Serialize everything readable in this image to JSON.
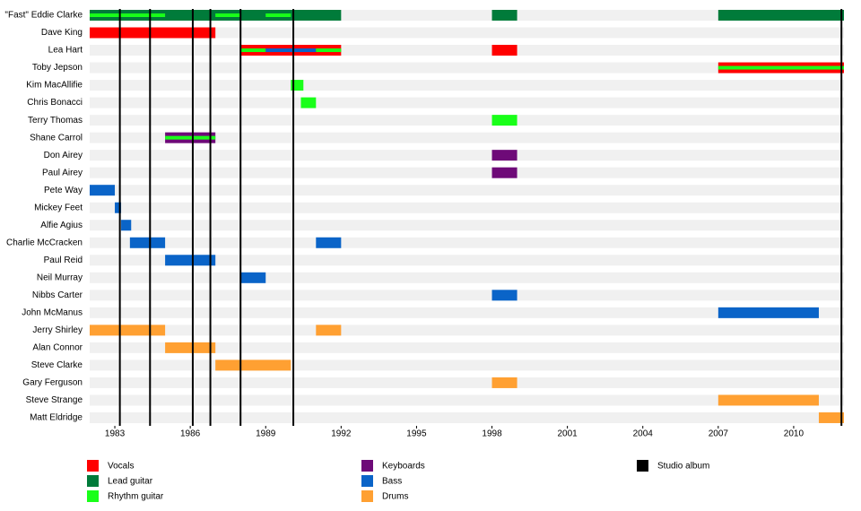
{
  "chart_data": {
    "type": "timeline",
    "xlim": [
      1982,
      2012
    ],
    "xticks": [
      1983,
      1986,
      1989,
      1992,
      1995,
      1998,
      2001,
      2004,
      2007,
      2010
    ],
    "series": [
      {
        "name": "Vocals",
        "color": "#ff0000"
      },
      {
        "name": "Lead guitar",
        "color": "#007b3a"
      },
      {
        "name": "Rhythm guitar",
        "color": "#19ff19"
      },
      {
        "name": "Keyboards",
        "color": "#6e0a78"
      },
      {
        "name": "Bass",
        "color": "#0a64c8"
      },
      {
        "name": "Drums",
        "color": "#ffa032"
      }
    ],
    "albums": {
      "name": "Studio album",
      "color": "#000000",
      "values": [
        1983.2,
        1984.4,
        1986.1,
        1986.8,
        1988.0,
        1990.1,
        2011.9
      ]
    },
    "rows": [
      {
        "name": "\"Fast\" Eddie Clarke",
        "spans": [
          {
            "role": "Lead guitar",
            "start": 1982,
            "end": 1992
          },
          {
            "role": "Lead guitar",
            "start": 1998,
            "end": 1999
          },
          {
            "role": "Lead guitar",
            "start": 2007,
            "end": 2012
          }
        ],
        "stripes": [
          {
            "role": "Rhythm guitar",
            "start": 1982,
            "end": 1985
          },
          {
            "role": "Rhythm guitar",
            "start": 1987,
            "end": 1988
          },
          {
            "role": "Rhythm guitar",
            "start": 1989,
            "end": 1990
          }
        ]
      },
      {
        "name": "Dave King",
        "spans": [
          {
            "role": "Vocals",
            "start": 1982,
            "end": 1987
          }
        ],
        "stripes": []
      },
      {
        "name": "Lea Hart",
        "spans": [
          {
            "role": "Vocals",
            "start": 1988,
            "end": 1992
          },
          {
            "role": "Vocals",
            "start": 1998,
            "end": 1999
          }
        ],
        "stripes": [
          {
            "role": "Rhythm guitar",
            "start": 1988,
            "end": 1989
          },
          {
            "role": "Bass",
            "start": 1989,
            "end": 1991
          },
          {
            "role": "Rhythm guitar",
            "start": 1991,
            "end": 1992
          }
        ]
      },
      {
        "name": "Toby Jepson",
        "spans": [
          {
            "role": "Vocals",
            "start": 2007,
            "end": 2012
          }
        ],
        "stripes": [
          {
            "role": "Rhythm guitar",
            "start": 2007,
            "end": 2012
          }
        ]
      },
      {
        "name": "Kim MacAllifie",
        "spans": [
          {
            "role": "Rhythm guitar",
            "start": 1990,
            "end": 1990.5
          }
        ],
        "stripes": []
      },
      {
        "name": "Chris Bonacci",
        "spans": [
          {
            "role": "Rhythm guitar",
            "start": 1990.4,
            "end": 1991
          }
        ],
        "stripes": []
      },
      {
        "name": "Terry Thomas",
        "spans": [
          {
            "role": "Rhythm guitar",
            "start": 1998,
            "end": 1999
          }
        ],
        "stripes": []
      },
      {
        "name": "Shane Carrol",
        "spans": [
          {
            "role": "Keyboards",
            "start": 1985,
            "end": 1987
          }
        ],
        "stripes": [
          {
            "role": "Rhythm guitar",
            "start": 1985,
            "end": 1987
          }
        ]
      },
      {
        "name": "Don Airey",
        "spans": [
          {
            "role": "Keyboards",
            "start": 1998,
            "end": 1999
          }
        ],
        "stripes": []
      },
      {
        "name": "Paul Airey",
        "spans": [
          {
            "role": "Keyboards",
            "start": 1998,
            "end": 1999
          }
        ],
        "stripes": []
      },
      {
        "name": "Pete Way",
        "spans": [
          {
            "role": "Bass",
            "start": 1982,
            "end": 1983
          }
        ],
        "stripes": []
      },
      {
        "name": "Mickey Feet",
        "spans": [
          {
            "role": "Bass",
            "start": 1983,
            "end": 1983.25
          }
        ],
        "stripes": []
      },
      {
        "name": "Alfie Agius",
        "spans": [
          {
            "role": "Bass",
            "start": 1983.25,
            "end": 1983.65
          }
        ],
        "stripes": []
      },
      {
        "name": "Charlie McCracken",
        "spans": [
          {
            "role": "Bass",
            "start": 1983.6,
            "end": 1985
          },
          {
            "role": "Bass",
            "start": 1991,
            "end": 1992
          }
        ],
        "stripes": []
      },
      {
        "name": "Paul Reid",
        "spans": [
          {
            "role": "Bass",
            "start": 1985,
            "end": 1987
          }
        ],
        "stripes": []
      },
      {
        "name": "Neil Murray",
        "spans": [
          {
            "role": "Bass",
            "start": 1988,
            "end": 1989
          }
        ],
        "stripes": []
      },
      {
        "name": "Nibbs Carter",
        "spans": [
          {
            "role": "Bass",
            "start": 1998,
            "end": 1999
          }
        ],
        "stripes": []
      },
      {
        "name": "John McManus",
        "spans": [
          {
            "role": "Bass",
            "start": 2007,
            "end": 2011
          }
        ],
        "stripes": []
      },
      {
        "name": "Jerry Shirley",
        "spans": [
          {
            "role": "Drums",
            "start": 1982,
            "end": 1985
          },
          {
            "role": "Drums",
            "start": 1991,
            "end": 1992
          }
        ],
        "stripes": []
      },
      {
        "name": "Alan Connor",
        "spans": [
          {
            "role": "Drums",
            "start": 1985,
            "end": 1987
          }
        ],
        "stripes": []
      },
      {
        "name": "Steve Clarke",
        "spans": [
          {
            "role": "Drums",
            "start": 1987,
            "end": 1990
          }
        ],
        "stripes": []
      },
      {
        "name": "Gary Ferguson",
        "spans": [
          {
            "role": "Drums",
            "start": 1998,
            "end": 1999
          }
        ],
        "stripes": []
      },
      {
        "name": "Steve Strange",
        "spans": [
          {
            "role": "Drums",
            "start": 2007,
            "end": 2011
          }
        ],
        "stripes": []
      },
      {
        "name": "Matt Eldridge",
        "spans": [
          {
            "role": "Drums",
            "start": 2011,
            "end": 2012
          }
        ],
        "stripes": []
      }
    ]
  }
}
